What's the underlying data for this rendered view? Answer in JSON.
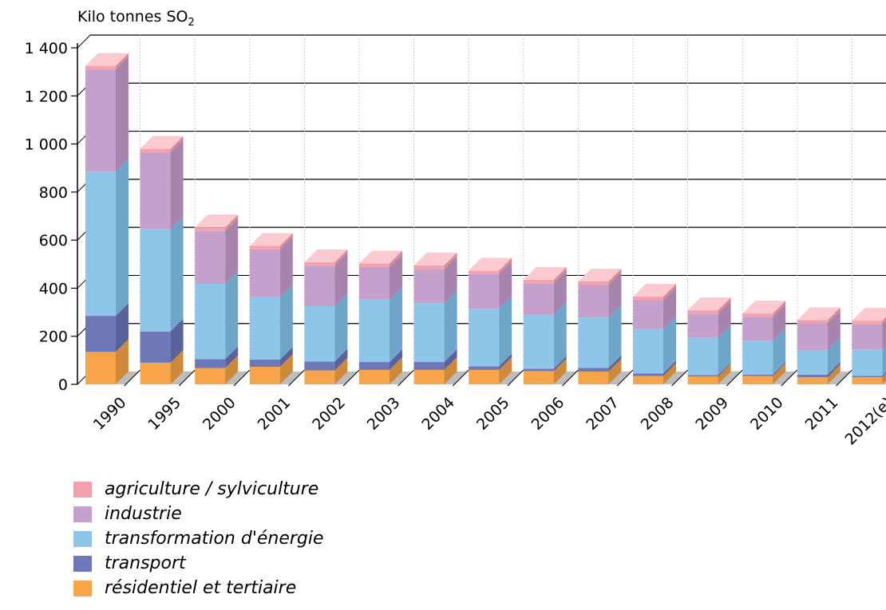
{
  "chart_data": {
    "type": "bar",
    "stacked": true,
    "three_d": true,
    "ylabel": "Kilo tonnes SO",
    "ylabel_sub": "2",
    "ylim": [
      0,
      1400
    ],
    "yticks": [
      0,
      200,
      400,
      600,
      800,
      1000,
      1200,
      1400
    ],
    "ytick_labels": [
      "0",
      "200",
      "400",
      "600",
      "800",
      "1 000",
      "1 200",
      "1 400"
    ],
    "categories": [
      "1990",
      "1995",
      "2000",
      "2001",
      "2002",
      "2003",
      "2004",
      "2005",
      "2006",
      "2007",
      "2008",
      "2009",
      "2010",
      "2011",
      "2012(e)"
    ],
    "series": [
      {
        "name": "résidentiel et tertiaire",
        "color": "#f7a44b",
        "side": "#cf893b",
        "top": "#fbc88e",
        "values": [
          135,
          90,
          68,
          73,
          58,
          60,
          60,
          60,
          55,
          53,
          35,
          33,
          35,
          30,
          30
        ]
      },
      {
        "name": "transport",
        "color": "#6e78b8",
        "side": "#59629a",
        "top": "#9ca3d2",
        "values": [
          150,
          130,
          37,
          30,
          37,
          33,
          33,
          15,
          10,
          15,
          10,
          5,
          5,
          10,
          5
        ]
      },
      {
        "name": "transformation d'énergie",
        "color": "#8ec6ea",
        "side": "#6fa5c8",
        "top": "#bfe0f4",
        "values": [
          600,
          425,
          313,
          260,
          230,
          260,
          245,
          240,
          225,
          210,
          185,
          155,
          140,
          100,
          110
        ]
      },
      {
        "name": "industrie",
        "color": "#c5a0cc",
        "side": "#a684ad",
        "top": "#e2cbe6",
        "values": [
          425,
          320,
          220,
          198,
          168,
          135,
          142,
          143,
          130,
          135,
          120,
          100,
          100,
          112,
          105
        ]
      },
      {
        "name": "agriculture / sylviculture",
        "color": "#f4a1ad",
        "side": "#d98894",
        "top": "#fbcad0",
        "values": [
          15,
          15,
          15,
          15,
          15,
          15,
          15,
          15,
          15,
          15,
          15,
          15,
          15,
          15,
          15
        ]
      }
    ],
    "grid": true,
    "legend_position": "bottom-left"
  }
}
